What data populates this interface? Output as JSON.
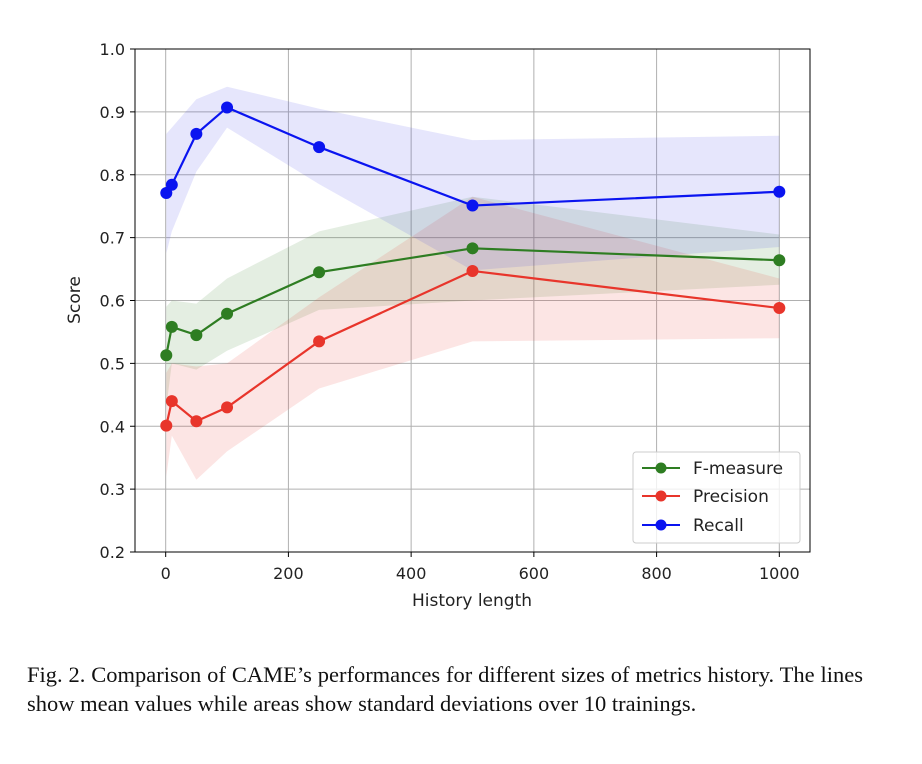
{
  "chart_data": {
    "type": "line",
    "xlabel": "History length",
    "ylabel": "Score",
    "xlim": [
      -50,
      1050
    ],
    "ylim": [
      0.2,
      1.0
    ],
    "xticks": [
      0,
      200,
      400,
      600,
      800,
      1000
    ],
    "yticks": [
      0.2,
      0.3,
      0.4,
      0.5,
      0.6,
      0.7,
      0.8,
      0.9,
      1.0
    ],
    "ytick_labels": [
      "0.2",
      "0.3",
      "0.4",
      "0.5",
      "0.6",
      "0.7",
      "0.8",
      "0.9",
      "1.0"
    ],
    "grid": true,
    "legend_position": "lower-right",
    "x": [
      1,
      10,
      50,
      100,
      250,
      500,
      1000
    ],
    "series": [
      {
        "name": "F-measure",
        "color": "#2e7d22",
        "band_color": "#2e7d22",
        "values": [
          0.513,
          0.558,
          0.545,
          0.579,
          0.645,
          0.683,
          0.664
        ],
        "lower": [
          0.43,
          0.5,
          0.49,
          0.52,
          0.585,
          0.6,
          0.625
        ],
        "upper": [
          0.59,
          0.6,
          0.595,
          0.635,
          0.71,
          0.765,
          0.705
        ]
      },
      {
        "name": "Precision",
        "color": "#e8352b",
        "band_color": "#e8352b",
        "values": [
          0.401,
          0.44,
          0.408,
          0.43,
          0.535,
          0.647,
          0.588
        ],
        "lower": [
          0.32,
          0.385,
          0.315,
          0.36,
          0.46,
          0.535,
          0.54
        ],
        "upper": [
          0.485,
          0.5,
          0.495,
          0.5,
          0.605,
          0.765,
          0.635
        ]
      },
      {
        "name": "Recall",
        "color": "#0a14f0",
        "band_color": "#3a3ae8",
        "values": [
          0.771,
          0.784,
          0.865,
          0.907,
          0.844,
          0.751,
          0.773
        ],
        "lower": [
          0.675,
          0.71,
          0.805,
          0.875,
          0.785,
          0.648,
          0.685
        ],
        "upper": [
          0.865,
          0.875,
          0.92,
          0.94,
          0.905,
          0.855,
          0.862
        ]
      }
    ]
  },
  "caption": "Fig. 2.  Comparison of CAME’s performances for different sizes of metrics history. The lines show mean values while areas show standard deviations over 10 trainings."
}
